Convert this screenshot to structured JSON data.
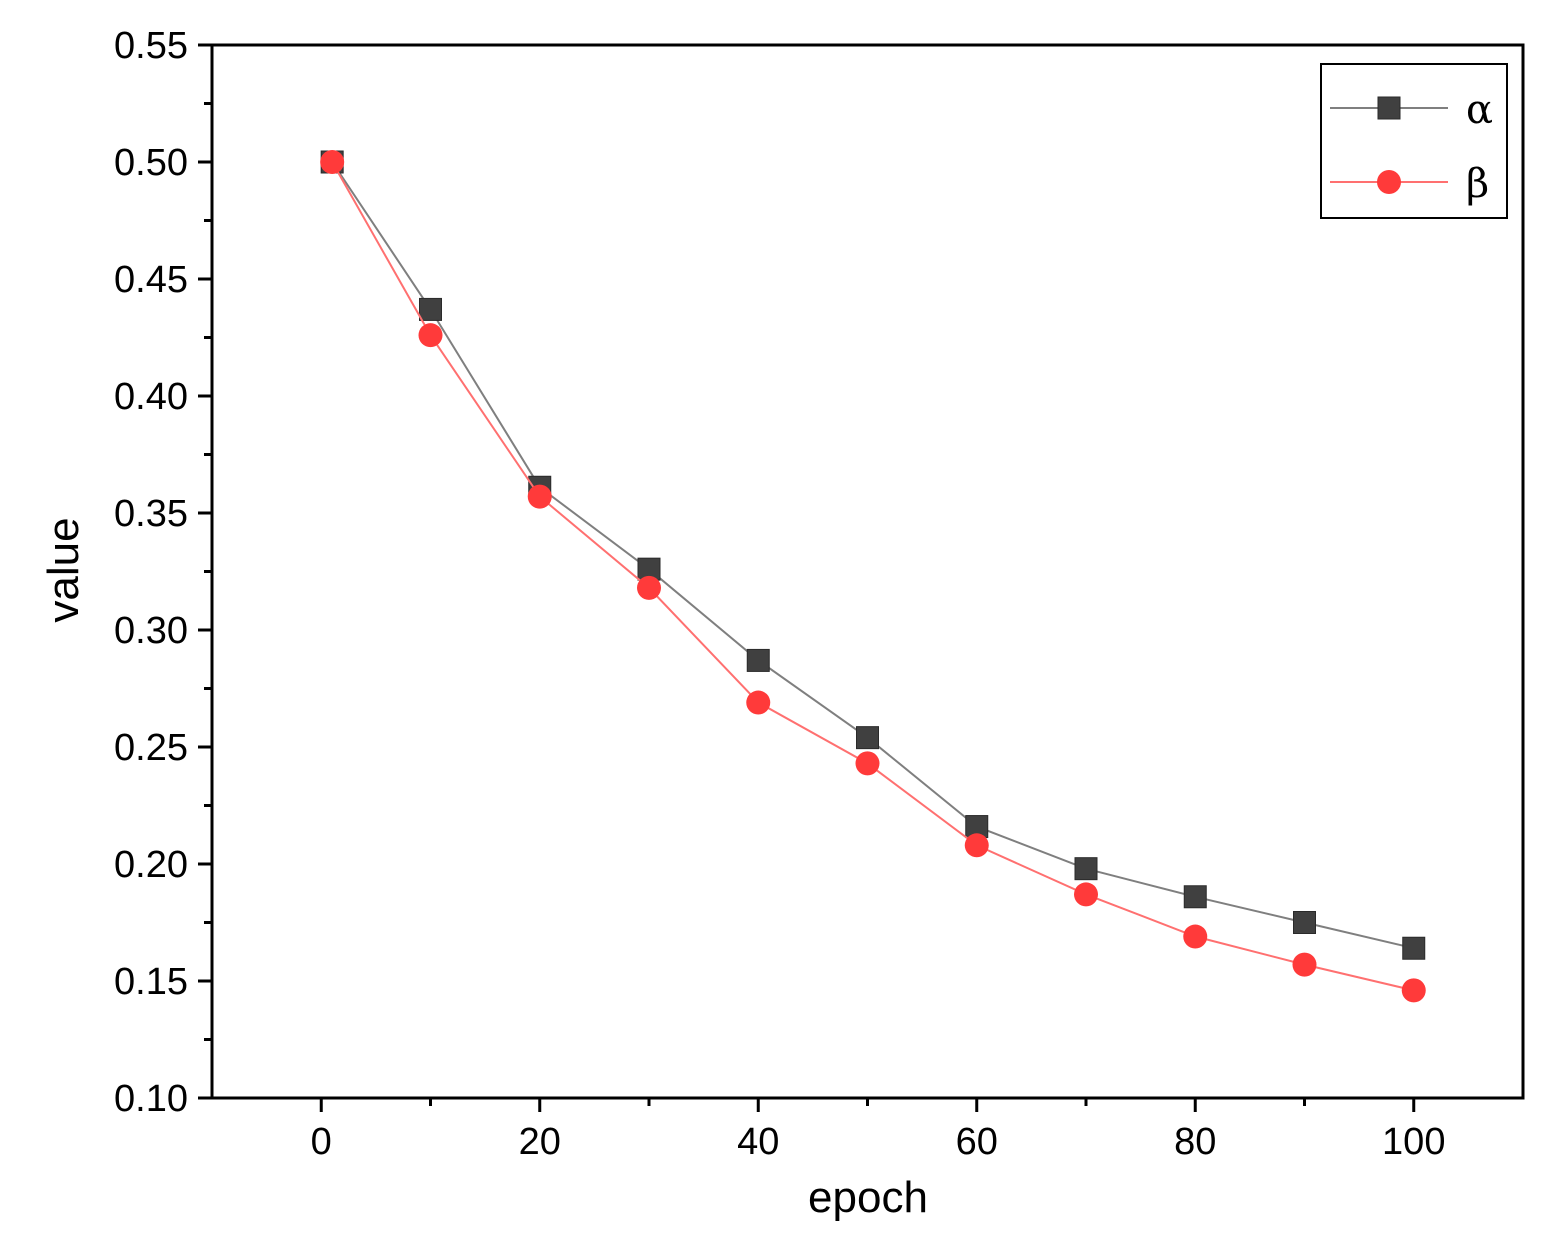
{
  "chart_data": {
    "type": "line",
    "x": [
      1,
      10,
      20,
      30,
      40,
      50,
      60,
      70,
      80,
      90,
      100
    ],
    "series": [
      {
        "name": "α",
        "marker": "square",
        "color": "#404040",
        "line_color": "#7f7f7f",
        "values": [
          0.5,
          0.437,
          0.361,
          0.326,
          0.287,
          0.254,
          0.216,
          0.198,
          0.186,
          0.175,
          0.164
        ]
      },
      {
        "name": "β",
        "marker": "circle",
        "color": "#ff3a3a",
        "line_color": "#ff7070",
        "values": [
          0.5,
          0.426,
          0.357,
          0.318,
          0.269,
          0.243,
          0.208,
          0.187,
          0.169,
          0.157,
          0.146
        ]
      }
    ],
    "xlabel": "epoch",
    "ylabel": "value",
    "xlim": [
      -10,
      110
    ],
    "ylim": [
      0.1,
      0.55
    ],
    "xticks": [
      0,
      20,
      40,
      60,
      80,
      100
    ],
    "xtick_labels": [
      "0",
      "20",
      "40",
      "60",
      "80",
      "100"
    ],
    "yticks": [
      0.1,
      0.15,
      0.2,
      0.25,
      0.3,
      0.35,
      0.4,
      0.45,
      0.5,
      0.55
    ],
    "ytick_labels": [
      "0.10",
      "0.15",
      "0.20",
      "0.25",
      "0.30",
      "0.35",
      "0.40",
      "0.45",
      "0.50",
      "0.55"
    ],
    "grid": false,
    "legend_position": "top-right"
  }
}
